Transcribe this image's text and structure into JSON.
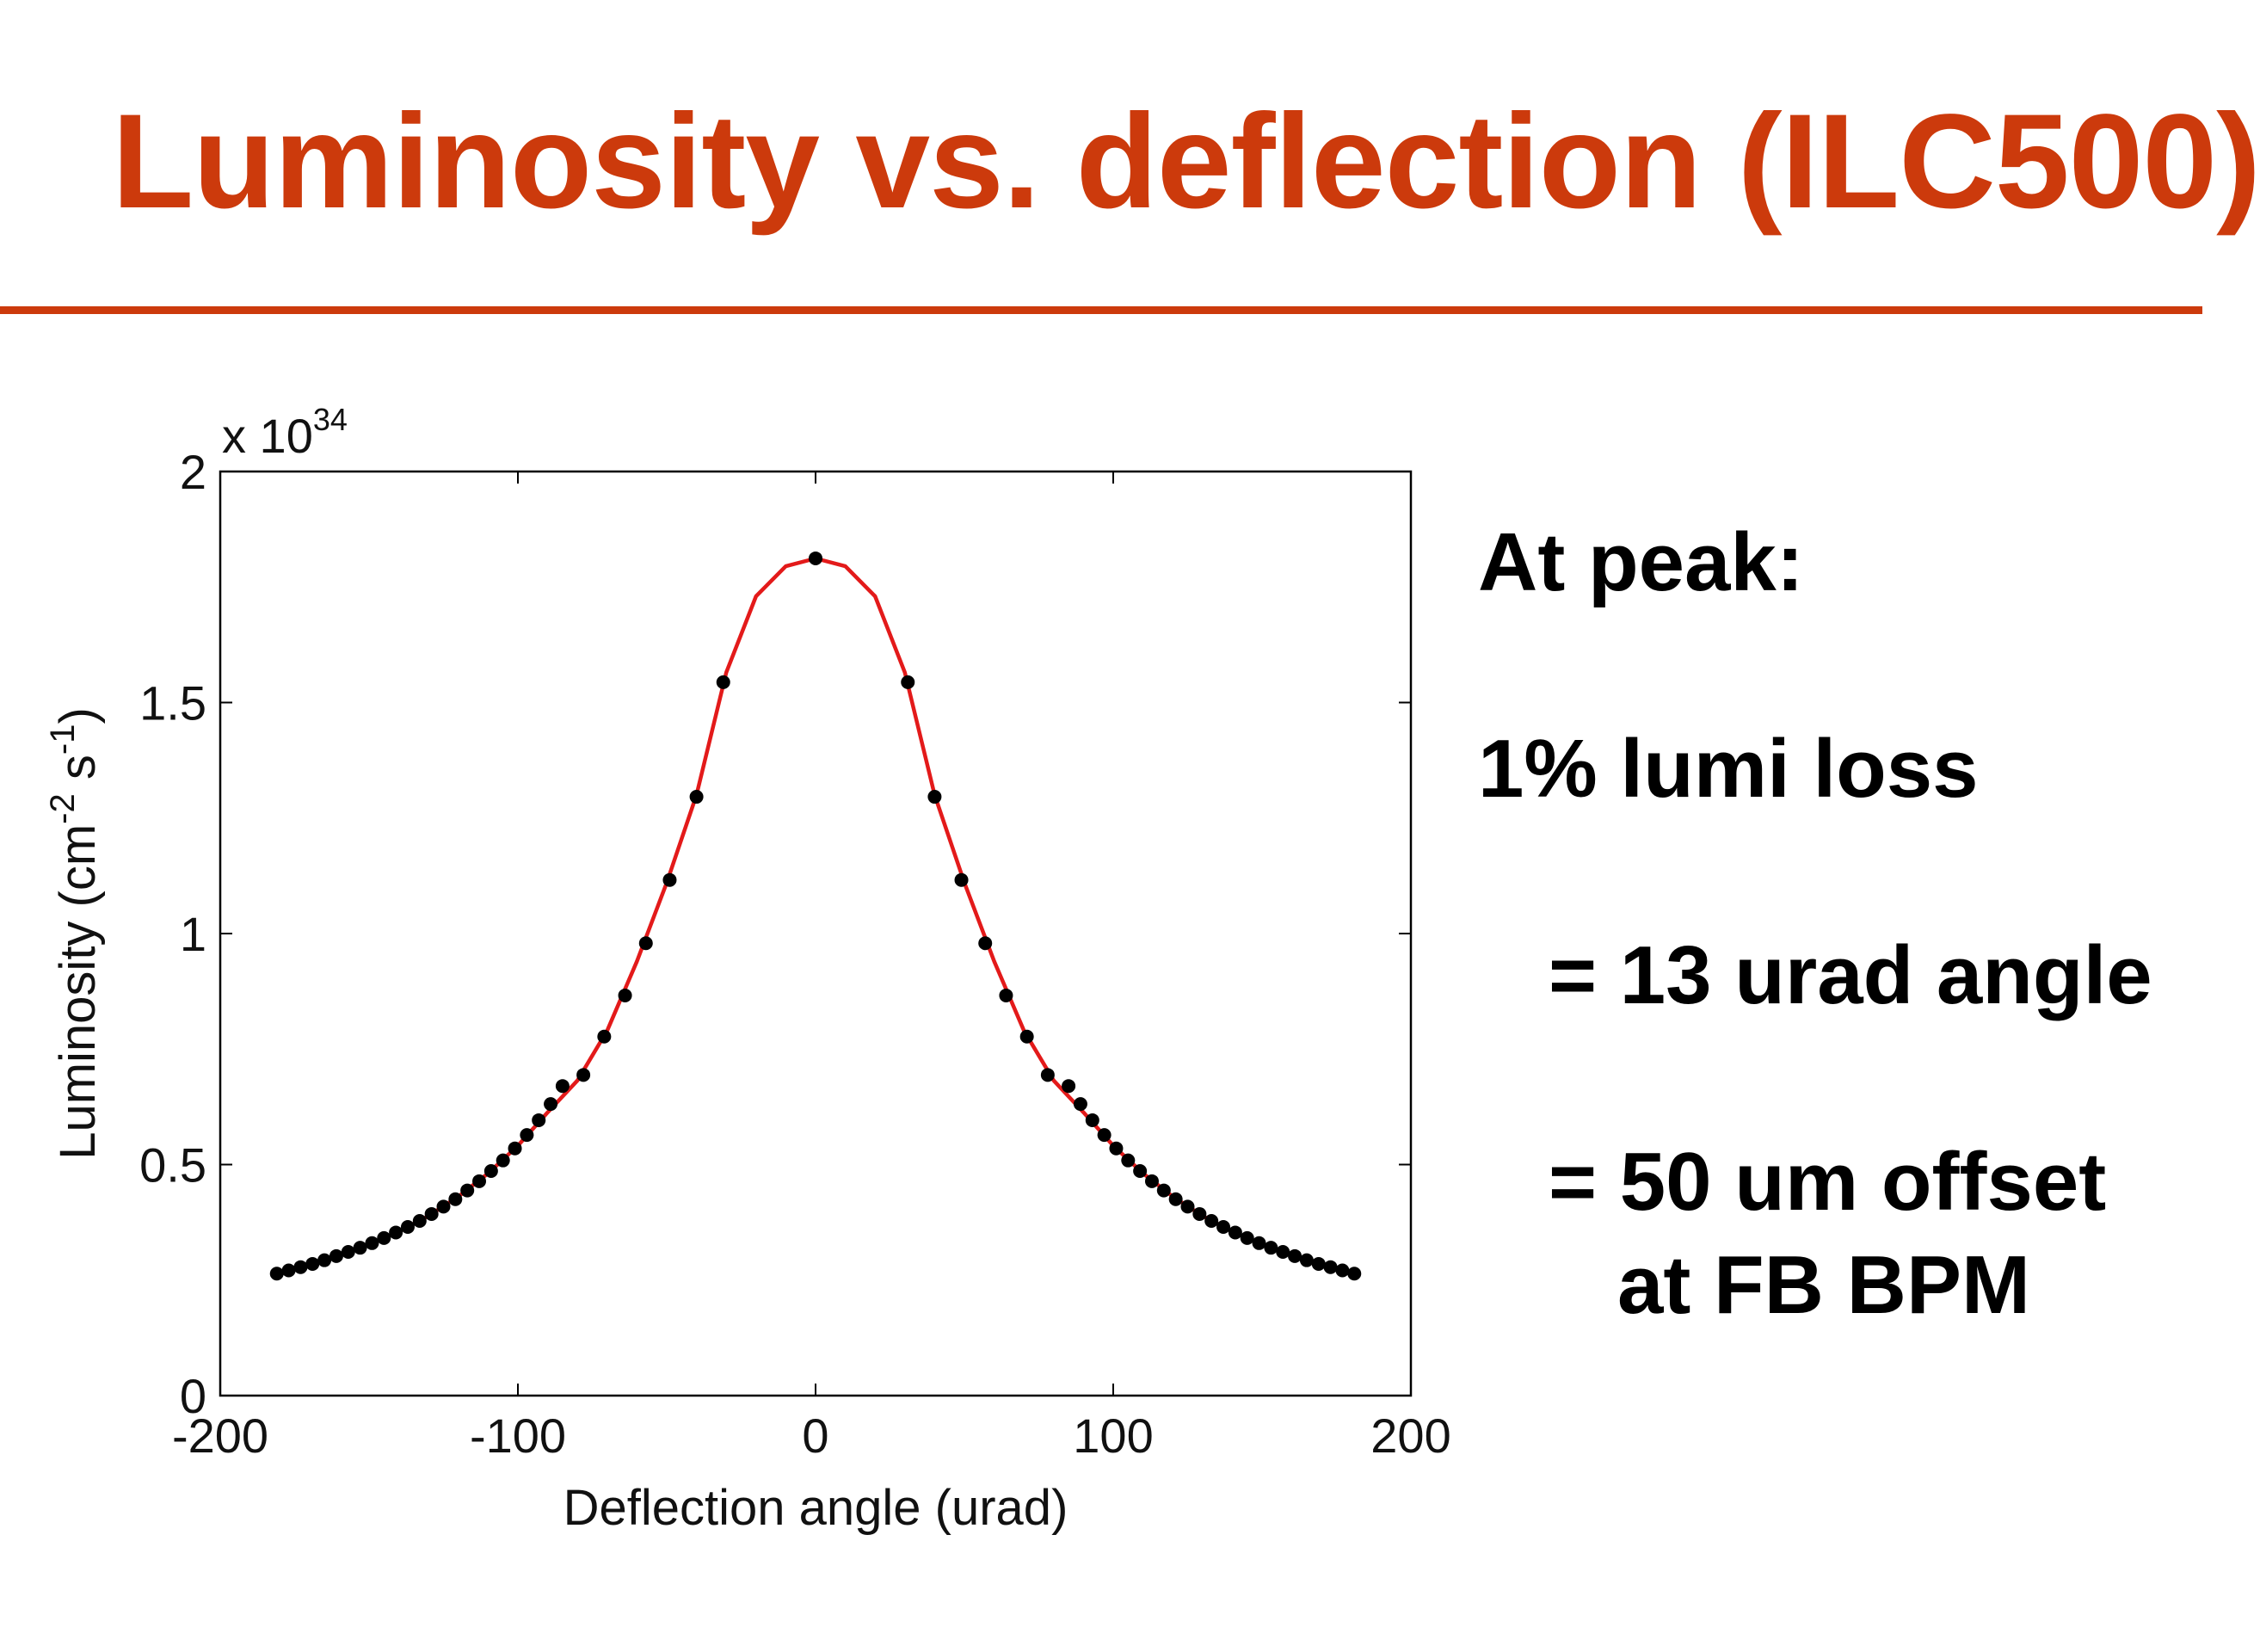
{
  "slide": {
    "title": "Luminosity vs. deflection (ILC500)",
    "notes": {
      "at_peak": "At peak:",
      "lumi_loss": "1% lumi loss",
      "angle": "= 13 urad angle",
      "offset": "= 50 um offset",
      "bpm": "at FB BPM"
    }
  },
  "colors": {
    "title": "#cc3a0c",
    "rule": "#cc3a0c",
    "curve": "#e31a1a",
    "points": "#000000",
    "axes": "#000000"
  },
  "chart_data": {
    "type": "scatter",
    "title": "",
    "xlabel": "Deflection angle (urad)",
    "ylabel": "Luminosity (cm",
    "ylabel_sup1": "-2",
    "ylabel_mid": " s",
    "ylabel_sup2": "-1",
    "ylabel_end": ")",
    "y_multiplier_prefix": "x 10",
    "y_multiplier_exponent": "34",
    "xlim": [
      -200,
      200
    ],
    "ylim": [
      0,
      2
    ],
    "xticks": [
      -200,
      -100,
      0,
      100,
      200
    ],
    "xtick_labels": [
      "-200",
      "-100",
      "0",
      "100",
      "200"
    ],
    "yticks": [
      0,
      0.5,
      1,
      1.5,
      2
    ],
    "ytick_labels": [
      "0",
      "0.5",
      "1",
      "1.5",
      "2"
    ],
    "grid": false,
    "series": [
      {
        "kind": "points",
        "x": [
          -181,
          -177,
          -173,
          -169,
          -165,
          -161,
          -157,
          -153,
          -149,
          -145,
          -141,
          -137,
          -133,
          -129,
          -125,
          -121,
          -117,
          -113,
          -109,
          -105,
          -101,
          -97,
          -93,
          -89,
          -85,
          -78,
          -71,
          -64,
          -57,
          -49,
          -40,
          -31,
          0,
          31,
          40,
          49,
          57,
          64,
          71,
          78,
          85,
          89,
          93,
          97,
          101,
          105,
          109,
          113,
          117,
          121,
          125,
          129,
          133,
          137,
          141,
          145,
          149,
          153,
          157,
          161,
          165,
          169,
          173,
          177,
          181
        ],
        "y": [
          0.264,
          0.271,
          0.278,
          0.285,
          0.293,
          0.302,
          0.311,
          0.32,
          0.33,
          0.341,
          0.353,
          0.365,
          0.378,
          0.393,
          0.409,
          0.425,
          0.444,
          0.464,
          0.486,
          0.509,
          0.535,
          0.564,
          0.596,
          0.631,
          0.67,
          0.694,
          0.777,
          0.866,
          0.979,
          1.116,
          1.296,
          1.544,
          1.812,
          1.544,
          1.296,
          1.116,
          0.979,
          0.866,
          0.777,
          0.694,
          0.67,
          0.631,
          0.596,
          0.564,
          0.535,
          0.509,
          0.486,
          0.464,
          0.444,
          0.425,
          0.409,
          0.393,
          0.378,
          0.365,
          0.353,
          0.341,
          0.33,
          0.32,
          0.311,
          0.302,
          0.293,
          0.285,
          0.278,
          0.271,
          0.264
        ]
      },
      {
        "kind": "fit-curve",
        "x": [
          -182,
          -170,
          -160,
          -150,
          -140,
          -130,
          -120,
          -110,
          -100,
          -90,
          -80,
          -70,
          -60,
          -50,
          -40,
          -30,
          -20,
          -10,
          0,
          10,
          20,
          30,
          40,
          50,
          60,
          70,
          80,
          90,
          100,
          110,
          120,
          130,
          140,
          150,
          160,
          170,
          182
        ],
        "y": [
          0.262,
          0.284,
          0.304,
          0.327,
          0.355,
          0.389,
          0.431,
          0.481,
          0.541,
          0.613,
          0.682,
          0.79,
          0.94,
          1.11,
          1.3,
          1.565,
          1.73,
          1.795,
          1.812,
          1.795,
          1.73,
          1.565,
          1.3,
          1.11,
          0.94,
          0.79,
          0.682,
          0.613,
          0.541,
          0.481,
          0.431,
          0.389,
          0.355,
          0.327,
          0.304,
          0.284,
          0.262
        ]
      }
    ]
  }
}
